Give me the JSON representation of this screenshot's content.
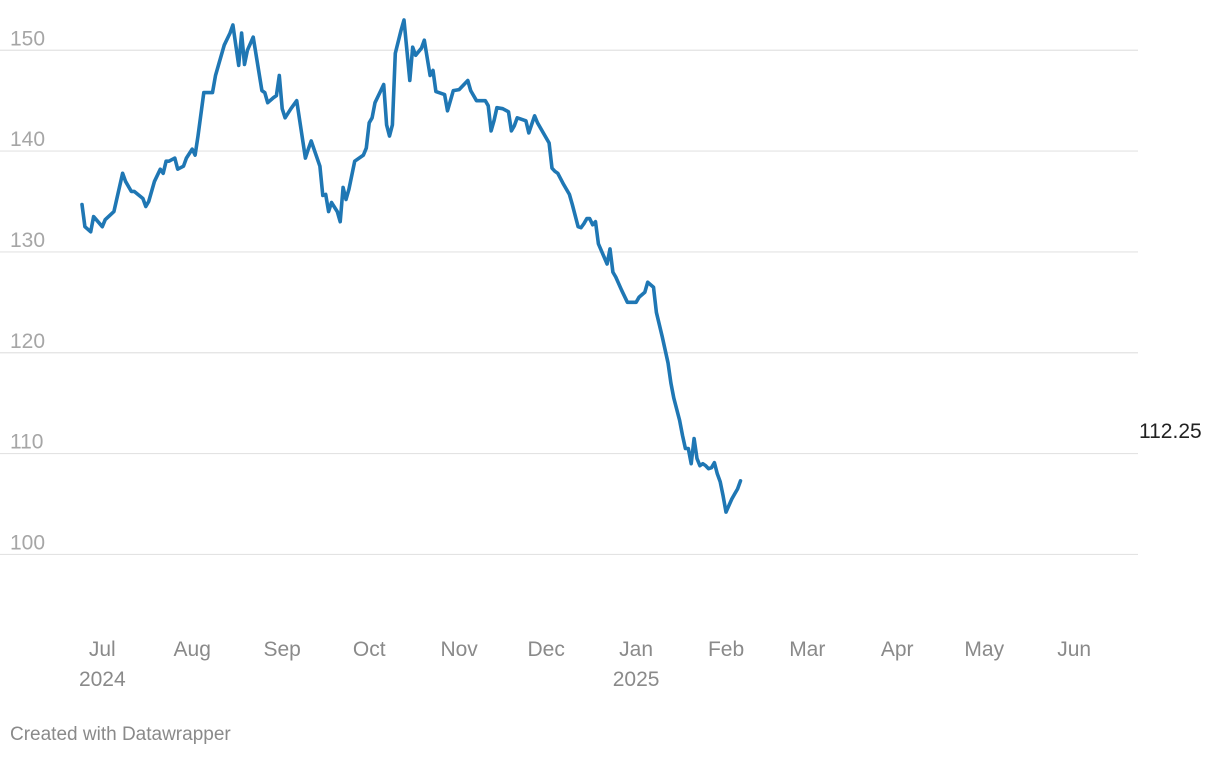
{
  "chart_data": {
    "type": "line",
    "title": "",
    "xlabel": "",
    "ylabel": "",
    "x_range": [
      "2024-06-24",
      "2025-06-23"
    ],
    "ylim": [
      93,
      153
    ],
    "y_ticks": [
      100,
      110,
      120,
      130,
      140,
      150
    ],
    "grid": "horizontal",
    "x_ticks": [
      {
        "date": "2024-07-01",
        "label": "Jul",
        "year": "2024"
      },
      {
        "date": "2024-08-01",
        "label": "Aug",
        "year": ""
      },
      {
        "date": "2024-09-01",
        "label": "Sep",
        "year": ""
      },
      {
        "date": "2024-10-01",
        "label": "Oct",
        "year": ""
      },
      {
        "date": "2024-11-01",
        "label": "Nov",
        "year": ""
      },
      {
        "date": "2024-12-01",
        "label": "Dec",
        "year": ""
      },
      {
        "date": "2025-01-01",
        "label": "Jan",
        "year": "2025"
      },
      {
        "date": "2025-02-01",
        "label": "Feb",
        "year": ""
      },
      {
        "date": "2025-03-01",
        "label": "Mar",
        "year": ""
      },
      {
        "date": "2025-04-01",
        "label": "Apr",
        "year": ""
      },
      {
        "date": "2025-05-01",
        "label": "May",
        "year": ""
      },
      {
        "date": "2025-06-01",
        "label": "Jun",
        "year": ""
      }
    ],
    "series": [
      {
        "color": "#1f77b4",
        "end_label": "112.25",
        "points": [
          [
            "2024-06-24",
            134.7
          ],
          [
            "2024-06-25",
            132.5
          ],
          [
            "2024-06-27",
            132.0
          ],
          [
            "2024-06-28",
            133.5
          ],
          [
            "2024-07-01",
            132.5
          ],
          [
            "2024-07-02",
            133.2
          ],
          [
            "2024-07-05",
            134.0
          ],
          [
            "2024-07-08",
            137.8
          ],
          [
            "2024-07-09",
            137.0
          ],
          [
            "2024-07-11",
            136.0
          ],
          [
            "2024-07-12",
            136.0
          ],
          [
            "2024-07-15",
            135.3
          ],
          [
            "2024-07-16",
            134.5
          ],
          [
            "2024-07-17",
            135.0
          ],
          [
            "2024-07-19",
            137.0
          ],
          [
            "2024-07-21",
            138.2
          ],
          [
            "2024-07-22",
            137.8
          ],
          [
            "2024-07-23",
            139.0
          ],
          [
            "2024-07-24",
            139.0
          ],
          [
            "2024-07-26",
            139.3
          ],
          [
            "2024-07-27",
            138.2
          ],
          [
            "2024-07-29",
            138.5
          ],
          [
            "2024-07-30",
            139.3
          ],
          [
            "2024-08-01",
            140.2
          ],
          [
            "2024-08-02",
            139.6
          ],
          [
            "2024-08-03",
            141.5
          ],
          [
            "2024-08-05",
            145.8
          ],
          [
            "2024-08-08",
            145.8
          ],
          [
            "2024-08-09",
            147.5
          ],
          [
            "2024-08-10",
            148.5
          ],
          [
            "2024-08-12",
            150.5
          ],
          [
            "2024-08-14",
            151.7
          ],
          [
            "2024-08-15",
            152.5
          ],
          [
            "2024-08-17",
            148.5
          ],
          [
            "2024-08-18",
            151.7
          ],
          [
            "2024-08-19",
            148.6
          ],
          [
            "2024-08-20",
            150.0
          ],
          [
            "2024-08-22",
            151.3
          ],
          [
            "2024-08-25",
            146.0
          ],
          [
            "2024-08-26",
            145.8
          ],
          [
            "2024-08-27",
            144.8
          ],
          [
            "2024-08-29",
            145.3
          ],
          [
            "2024-08-30",
            145.5
          ],
          [
            "2024-08-31",
            147.5
          ],
          [
            "2024-09-01",
            144.2
          ],
          [
            "2024-09-02",
            143.3
          ],
          [
            "2024-09-04",
            144.2
          ],
          [
            "2024-09-06",
            145.0
          ],
          [
            "2024-09-09",
            139.3
          ],
          [
            "2024-09-10",
            140.2
          ],
          [
            "2024-09-11",
            141.0
          ],
          [
            "2024-09-14",
            138.5
          ],
          [
            "2024-09-15",
            135.6
          ],
          [
            "2024-09-16",
            135.7
          ],
          [
            "2024-09-17",
            134.0
          ],
          [
            "2024-09-18",
            134.9
          ],
          [
            "2024-09-20",
            134.0
          ],
          [
            "2024-09-21",
            133.0
          ],
          [
            "2024-09-22",
            136.4
          ],
          [
            "2024-09-23",
            135.2
          ],
          [
            "2024-09-24",
            136.2
          ],
          [
            "2024-09-26",
            139.0
          ],
          [
            "2024-09-29",
            139.6
          ],
          [
            "2024-09-30",
            140.3
          ],
          [
            "2024-10-01",
            142.8
          ],
          [
            "2024-10-02",
            143.3
          ],
          [
            "2024-10-03",
            144.8
          ],
          [
            "2024-10-05",
            146.0
          ],
          [
            "2024-10-06",
            146.6
          ],
          [
            "2024-10-07",
            142.6
          ],
          [
            "2024-10-08",
            141.5
          ],
          [
            "2024-10-09",
            142.6
          ],
          [
            "2024-10-10",
            149.7
          ],
          [
            "2024-10-12",
            152.0
          ],
          [
            "2024-10-13",
            153.0
          ],
          [
            "2024-10-14",
            150.0
          ],
          [
            "2024-10-15",
            147.0
          ],
          [
            "2024-10-16",
            150.3
          ],
          [
            "2024-10-17",
            149.5
          ],
          [
            "2024-10-19",
            150.2
          ],
          [
            "2024-10-20",
            151.0
          ],
          [
            "2024-10-22",
            147.5
          ],
          [
            "2024-10-23",
            148.0
          ],
          [
            "2024-10-24",
            145.9
          ],
          [
            "2024-10-27",
            145.6
          ],
          [
            "2024-10-28",
            144.0
          ],
          [
            "2024-10-29",
            145.0
          ],
          [
            "2024-10-30",
            146.0
          ],
          [
            "2024-11-01",
            146.1
          ],
          [
            "2024-11-04",
            147.0
          ],
          [
            "2024-11-05",
            146.0
          ],
          [
            "2024-11-07",
            145.0
          ],
          [
            "2024-11-08",
            145.0
          ],
          [
            "2024-11-10",
            145.0
          ],
          [
            "2024-11-11",
            144.5
          ],
          [
            "2024-11-12",
            142.0
          ],
          [
            "2024-11-13",
            143.0
          ],
          [
            "2024-11-14",
            144.3
          ],
          [
            "2024-11-16",
            144.2
          ],
          [
            "2024-11-18",
            143.9
          ],
          [
            "2024-11-19",
            142.0
          ],
          [
            "2024-11-20",
            142.5
          ],
          [
            "2024-11-21",
            143.3
          ],
          [
            "2024-11-24",
            143.0
          ],
          [
            "2024-11-25",
            141.8
          ],
          [
            "2024-11-27",
            143.5
          ],
          [
            "2024-11-28",
            142.8
          ],
          [
            "2024-12-02",
            140.8
          ],
          [
            "2024-12-03",
            138.3
          ],
          [
            "2024-12-04",
            138.0
          ],
          [
            "2024-12-05",
            137.8
          ],
          [
            "2024-12-07",
            136.7
          ],
          [
            "2024-12-09",
            135.7
          ],
          [
            "2024-12-10",
            134.7
          ],
          [
            "2024-12-12",
            132.5
          ],
          [
            "2024-12-13",
            132.4
          ],
          [
            "2024-12-14",
            132.8
          ],
          [
            "2024-12-15",
            133.3
          ],
          [
            "2024-12-16",
            133.3
          ],
          [
            "2024-12-17",
            132.7
          ],
          [
            "2024-12-18",
            133.0
          ],
          [
            "2024-12-19",
            130.8
          ],
          [
            "2024-12-22",
            128.8
          ],
          [
            "2024-12-23",
            130.3
          ],
          [
            "2024-12-24",
            128.0
          ],
          [
            "2024-12-25",
            127.5
          ],
          [
            "2024-12-27",
            126.2
          ],
          [
            "2024-12-29",
            125.0
          ],
          [
            "2024-12-31",
            125.0
          ],
          [
            "2025-01-01",
            125.0
          ],
          [
            "2025-01-02",
            125.5
          ],
          [
            "2025-01-04",
            126.0
          ],
          [
            "2025-01-05",
            127.0
          ],
          [
            "2025-01-07",
            126.5
          ],
          [
            "2025-01-08",
            124.0
          ],
          [
            "2025-01-10",
            121.6
          ],
          [
            "2025-01-12",
            119.0
          ],
          [
            "2025-01-13",
            117.0
          ],
          [
            "2025-01-14",
            115.5
          ],
          [
            "2025-01-16",
            113.3
          ],
          [
            "2025-01-17",
            111.8
          ],
          [
            "2025-01-18",
            110.5
          ],
          [
            "2025-01-19",
            110.5
          ],
          [
            "2025-01-20",
            109.0
          ],
          [
            "2025-01-21",
            111.5
          ],
          [
            "2025-01-22",
            109.5
          ],
          [
            "2025-01-23",
            108.8
          ],
          [
            "2025-01-24",
            109.0
          ],
          [
            "2025-01-25",
            108.8
          ],
          [
            "2025-01-26",
            108.5
          ],
          [
            "2025-01-27",
            108.6
          ],
          [
            "2025-01-28",
            109.1
          ],
          [
            "2025-01-29",
            108.0
          ],
          [
            "2025-01-30",
            107.2
          ],
          [
            "2025-01-31",
            105.8
          ],
          [
            "2025-02-01",
            104.2
          ],
          [
            "2025-02-03",
            105.5
          ],
          [
            "2025-02-04",
            106.0
          ],
          [
            "2025-02-05",
            106.5
          ],
          [
            "2025-02-06",
            107.3
          ]
        ]
      }
    ]
  },
  "footer": {
    "credit": "Created with Datawrapper"
  }
}
